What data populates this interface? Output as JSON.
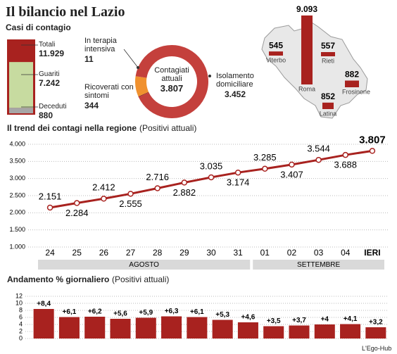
{
  "title": "Il bilancio nel Lazio",
  "source": "L'Ego-Hub",
  "chart_data": [
    {
      "type": "stacked-bar",
      "title": "Casi di contagio",
      "categories": [
        "Totali",
        "Guariti",
        "Deceduti"
      ],
      "values": [
        11929,
        7242,
        880
      ],
      "value_labels": [
        "11.929",
        "7.242",
        "880"
      ],
      "colors": [
        "#a8221f",
        "#c7dba0",
        "#a6a6a6"
      ]
    },
    {
      "type": "donut",
      "title": "Contagiati attuali",
      "center_value": 3807,
      "center_label": "3.807",
      "categories": [
        "In terapia intensiva",
        "Ricoverati con sintomi",
        "Isolamento domiciliare"
      ],
      "values": [
        11,
        344,
        3452
      ],
      "value_labels": [
        "11",
        "344",
        "3.452"
      ],
      "colors": [
        "#7a1512",
        "#f0912f",
        "#c4403c"
      ]
    },
    {
      "type": "map-bars",
      "categories": [
        "Viterbo",
        "Roma",
        "Rieti",
        "Frosinone",
        "Latina"
      ],
      "values": [
        545,
        9093,
        557,
        882,
        852
      ],
      "value_labels": [
        "545",
        "9.093",
        "557",
        "882",
        "852"
      ],
      "color": "#a8221f"
    },
    {
      "type": "line",
      "title": "Il trend dei contagi nella regione",
      "subtitle": "(Positivi attuali)",
      "categories": [
        "24",
        "25",
        "26",
        "27",
        "28",
        "29",
        "30",
        "31",
        "01",
        "02",
        "03",
        "04",
        "IERI"
      ],
      "values": [
        2151,
        2284,
        2412,
        2555,
        2716,
        2882,
        3035,
        3174,
        3285,
        3407,
        3544,
        3688,
        3807
      ],
      "value_labels": [
        "2.151",
        "2.284",
        "2.412",
        "2.555",
        "2.716",
        "2.882",
        "3.035",
        "3.174",
        "3.285",
        "3.407",
        "3.544",
        "3.688",
        "3.807"
      ],
      "groups": [
        {
          "label": "AGOSTO",
          "from": "24",
          "to": "31"
        },
        {
          "label": "SETTEMBRE",
          "from": "01",
          "to": "IERI"
        }
      ],
      "ylim": [
        1000,
        4000
      ],
      "yticks": [
        {
          "value": 1000,
          "label": "1.000"
        },
        {
          "value": 1500,
          "label": "1.500"
        },
        {
          "value": 2000,
          "label": "2.000"
        },
        {
          "value": 2500,
          "label": "2.500"
        },
        {
          "value": 3000,
          "label": "3.000"
        },
        {
          "value": 3500,
          "label": "3.500"
        },
        {
          "value": 4000,
          "label": "4.000"
        }
      ],
      "grid": true,
      "color": "#a8221f"
    },
    {
      "type": "bar",
      "title": "Andamento % giornaliero",
      "subtitle": "(Positivi attuali)",
      "values": [
        8.4,
        6.1,
        6.2,
        5.6,
        5.9,
        6.3,
        6.1,
        5.3,
        4.6,
        3.5,
        3.7,
        4,
        4.1,
        3.2
      ],
      "value_labels": [
        "+8,4",
        "+6,1",
        "+6,2",
        "+5,6",
        "+5,9",
        "+6,3",
        "+6,1",
        "+5,3",
        "+4,6",
        "+3,5",
        "+3,7",
        "+4",
        "+4,1",
        "+3,2"
      ],
      "ylim": [
        0,
        12
      ],
      "yticks": [
        0,
        2,
        4,
        6,
        8,
        10,
        12
      ],
      "grid": true,
      "color": "#a8221f"
    }
  ]
}
